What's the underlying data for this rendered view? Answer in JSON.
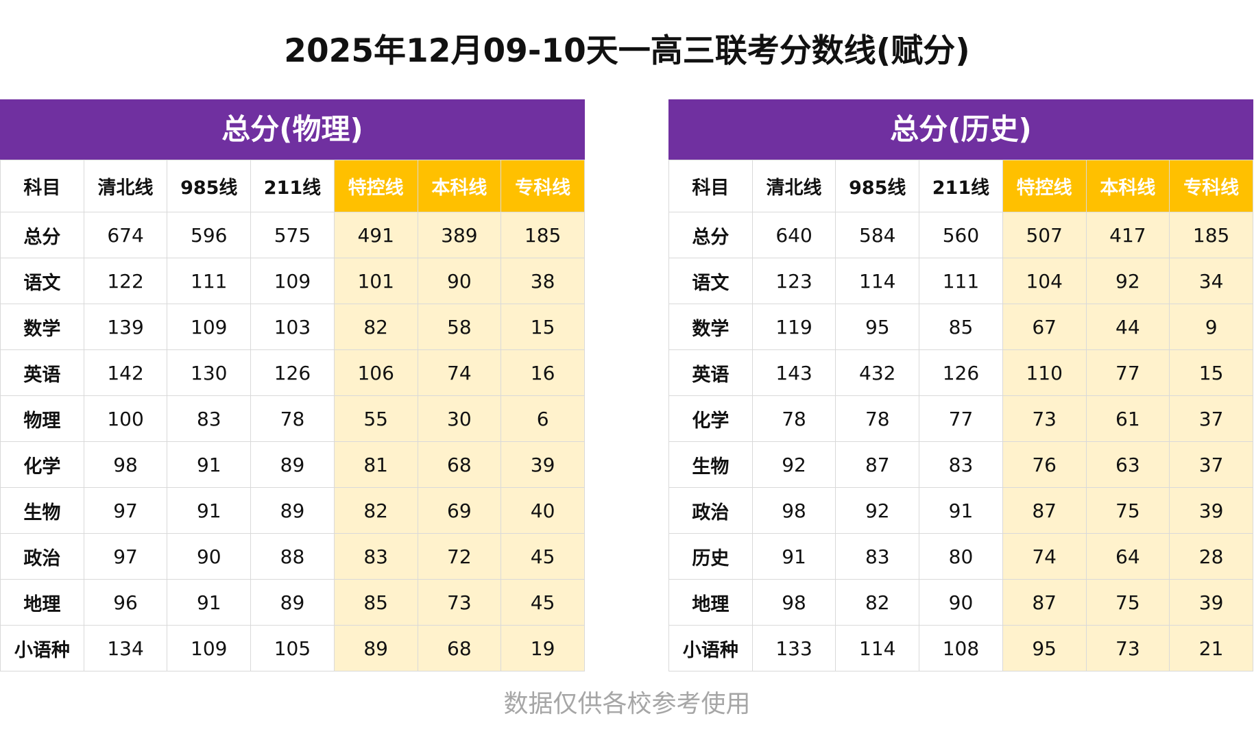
{
  "title": "2025年12月09-10天一高三联考分数线(赋分)",
  "footer": "数据仅供各校参考使用",
  "colors": {
    "header_purple": "#7030a0",
    "highlight_header": "#ffc000",
    "highlight_cell": "#fff2cc"
  },
  "tables": [
    {
      "header": "总分(物理)",
      "columns": [
        "科目",
        "清北线",
        "985线",
        "211线",
        "特控线",
        "本科线",
        "专科线"
      ],
      "rows": [
        [
          "总分",
          "674",
          "596",
          "575",
          "491",
          "389",
          "185"
        ],
        [
          "语文",
          "122",
          "111",
          "109",
          "101",
          "90",
          "38"
        ],
        [
          "数学",
          "139",
          "109",
          "103",
          "82",
          "58",
          "15"
        ],
        [
          "英语",
          "142",
          "130",
          "126",
          "106",
          "74",
          "16"
        ],
        [
          "物理",
          "100",
          "83",
          "78",
          "55",
          "30",
          "6"
        ],
        [
          "化学",
          "98",
          "91",
          "89",
          "81",
          "68",
          "39"
        ],
        [
          "生物",
          "97",
          "91",
          "89",
          "82",
          "69",
          "40"
        ],
        [
          "政治",
          "97",
          "90",
          "88",
          "83",
          "72",
          "45"
        ],
        [
          "地理",
          "96",
          "91",
          "89",
          "85",
          "73",
          "45"
        ],
        [
          "小语种",
          "134",
          "109",
          "105",
          "89",
          "68",
          "19"
        ]
      ]
    },
    {
      "header": "总分(历史)",
      "columns": [
        "科目",
        "清北线",
        "985线",
        "211线",
        "特控线",
        "本科线",
        "专科线"
      ],
      "rows": [
        [
          "总分",
          "640",
          "584",
          "560",
          "507",
          "417",
          "185"
        ],
        [
          "语文",
          "123",
          "114",
          "111",
          "104",
          "92",
          "34"
        ],
        [
          "数学",
          "119",
          "95",
          "85",
          "67",
          "44",
          "9"
        ],
        [
          "英语",
          "143",
          "432",
          "126",
          "110",
          "77",
          "15"
        ],
        [
          "化学",
          "78",
          "78",
          "77",
          "73",
          "61",
          "37"
        ],
        [
          "生物",
          "92",
          "87",
          "83",
          "76",
          "63",
          "37"
        ],
        [
          "政治",
          "98",
          "92",
          "91",
          "87",
          "75",
          "39"
        ],
        [
          "历史",
          "91",
          "83",
          "80",
          "74",
          "64",
          "28"
        ],
        [
          "地理",
          "98",
          "82",
          "90",
          "87",
          "75",
          "39"
        ],
        [
          "小语种",
          "133",
          "114",
          "108",
          "95",
          "73",
          "21"
        ]
      ]
    }
  ]
}
